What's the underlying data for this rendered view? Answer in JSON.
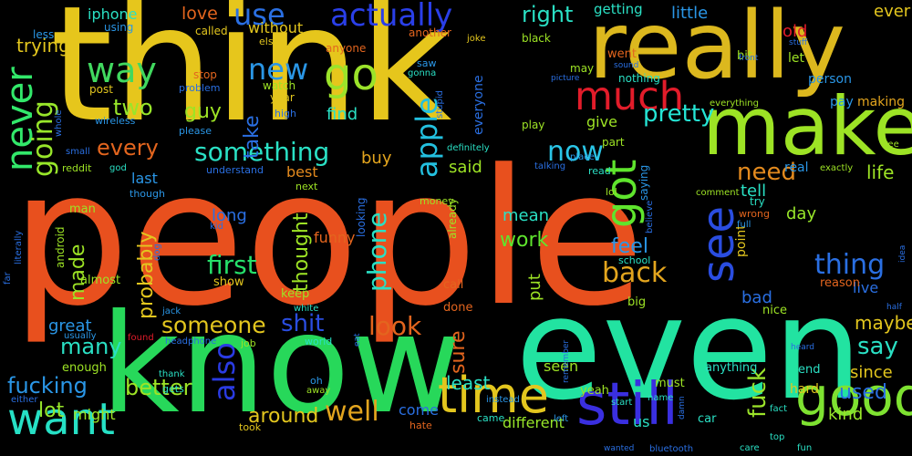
{
  "words": [
    {
      "text": "people",
      "color": "#e8501e"
    },
    {
      "text": "think",
      "color": "#e6c61c"
    },
    {
      "text": "know",
      "color": "#27d85a"
    },
    {
      "text": "even",
      "color": "#22e3a1"
    },
    {
      "text": "really",
      "color": "#dcb81e"
    },
    {
      "text": "make",
      "color": "#9de325"
    },
    {
      "text": "good",
      "color": "#7ee231"
    },
    {
      "text": "still",
      "color": "#3a2fe0"
    },
    {
      "text": "time",
      "color": "#e3c61e"
    },
    {
      "text": "want",
      "color": "#26e0c5"
    },
    {
      "text": "never",
      "color": "#32e86a"
    },
    {
      "text": "much",
      "color": "#e21c2a"
    },
    {
      "text": "go",
      "color": "#9be32a"
    },
    {
      "text": "got",
      "color": "#5fe52d"
    },
    {
      "text": "see",
      "color": "#2a4de0"
    },
    {
      "text": "way",
      "color": "#41d85f"
    },
    {
      "text": "going",
      "color": "#98e62a"
    },
    {
      "text": "also",
      "color": "#2a3be3"
    },
    {
      "text": "apple",
      "color": "#23c0df"
    },
    {
      "text": "actually",
      "color": "#2a3fe8"
    },
    {
      "text": "use",
      "color": "#2a6fe2"
    },
    {
      "text": "new",
      "color": "#2a96e6"
    },
    {
      "text": "pretty",
      "color": "#25e5d5"
    },
    {
      "text": "thing",
      "color": "#2a6fe2"
    },
    {
      "text": "something",
      "color": "#2ae0c4"
    },
    {
      "text": "first",
      "color": "#26e06a"
    },
    {
      "text": "someone",
      "color": "#e3c61e"
    },
    {
      "text": "shit",
      "color": "#2a4de0"
    },
    {
      "text": "need",
      "color": "#e38a1e"
    },
    {
      "text": "now",
      "color": "#2ac5e6"
    },
    {
      "text": "look",
      "color": "#e3651e"
    },
    {
      "text": "back",
      "color": "#e3a51e"
    },
    {
      "text": "say",
      "color": "#2ae0c4"
    },
    {
      "text": "well",
      "color": "#e3a51e"
    },
    {
      "text": "fucking",
      "color": "#2a96e6"
    },
    {
      "text": "every",
      "color": "#e3651e"
    },
    {
      "text": "better",
      "color": "#9de325"
    },
    {
      "text": "fuck",
      "color": "#9be32a"
    },
    {
      "text": "two",
      "color": "#98e62a"
    },
    {
      "text": "guy",
      "color": "#9de325"
    },
    {
      "text": "phone",
      "color": "#2ae0c4"
    },
    {
      "text": "feel",
      "color": "#2a96e6"
    },
    {
      "text": "lot",
      "color": "#98e62a"
    },
    {
      "text": "many",
      "color": "#2ae0c4"
    },
    {
      "text": "probably",
      "color": "#e3c61e"
    },
    {
      "text": "made",
      "color": "#9de325"
    },
    {
      "text": "work",
      "color": "#5fe52d"
    },
    {
      "text": "take",
      "color": "#2a6fe2"
    },
    {
      "text": "right",
      "color": "#2ae0c4"
    },
    {
      "text": "least",
      "color": "#2ae0c4"
    },
    {
      "text": "thought",
      "color": "#9de325"
    },
    {
      "text": "sure",
      "color": "#e3651e"
    },
    {
      "text": "around",
      "color": "#e3c61e"
    },
    {
      "text": "used",
      "color": "#2a6fe2"
    },
    {
      "text": "maybe",
      "color": "#e3c61e"
    },
    {
      "text": "life",
      "color": "#9de325"
    },
    {
      "text": "love",
      "color": "#e3651e"
    },
    {
      "text": "iphone",
      "color": "#2ae0c4"
    },
    {
      "text": "trying",
      "color": "#e3c61e"
    },
    {
      "text": "without",
      "color": "#e3c61e"
    },
    {
      "text": "funny",
      "color": "#e3651e"
    },
    {
      "text": "find",
      "color": "#2ae0c4"
    },
    {
      "text": "said",
      "color": "#9de325"
    },
    {
      "text": "buy",
      "color": "#e3a51e"
    },
    {
      "text": "mean",
      "color": "#2ae0c4"
    },
    {
      "text": "put",
      "color": "#9de325"
    },
    {
      "text": "tell",
      "color": "#2ae0c4"
    },
    {
      "text": "day",
      "color": "#98e62a"
    },
    {
      "text": "bad",
      "color": "#2a6fe2"
    },
    {
      "text": "since",
      "color": "#e3c61e"
    },
    {
      "text": "kind",
      "color": "#98e62a"
    },
    {
      "text": "ever",
      "color": "#e3c61e"
    },
    {
      "text": "old",
      "color": "#e21c2a"
    },
    {
      "text": "little",
      "color": "#2a96e6"
    },
    {
      "text": "getting",
      "color": "#2ae0c4"
    },
    {
      "text": "give",
      "color": "#9de325"
    },
    {
      "text": "last",
      "color": "#2a96e6"
    },
    {
      "text": "best",
      "color": "#e38a1e"
    },
    {
      "text": "long",
      "color": "#2a6fe2"
    },
    {
      "text": "great",
      "color": "#2a96e6"
    },
    {
      "text": "different",
      "color": "#98e62a"
    },
    {
      "text": "might",
      "color": "#9de325"
    },
    {
      "text": "come",
      "color": "#2a6fe2"
    },
    {
      "text": "us",
      "color": "#2ae0c4"
    },
    {
      "text": "seen",
      "color": "#9de325"
    },
    {
      "text": "live",
      "color": "#2a6fe2"
    },
    {
      "text": "point",
      "color": "#e3c61e"
    },
    {
      "text": "everyone",
      "color": "#2a6fe2"
    },
    {
      "text": "nothing",
      "color": "#2ae0c4"
    },
    {
      "text": "went",
      "color": "#e3651e"
    },
    {
      "text": "saying",
      "color": "#2a96e6"
    },
    {
      "text": "real",
      "color": "#2a96e6"
    },
    {
      "text": "try",
      "color": "#2ae0c4"
    },
    {
      "text": "wrong",
      "color": "#e3651e"
    },
    {
      "text": "person",
      "color": "#2a96e6"
    },
    {
      "text": "making",
      "color": "#e3a51e"
    },
    {
      "text": "pay",
      "color": "#2a96e6"
    },
    {
      "text": "let",
      "color": "#9de325"
    },
    {
      "text": "bit",
      "color": "#9de325"
    },
    {
      "text": "end",
      "color": "#2ae0c4"
    },
    {
      "text": "hard",
      "color": "#e3c61e"
    },
    {
      "text": "must",
      "color": "#9de325"
    },
    {
      "text": "enough",
      "color": "#9de325"
    },
    {
      "text": "keep",
      "color": "#9de325"
    },
    {
      "text": "call",
      "color": "#e3651e"
    },
    {
      "text": "done",
      "color": "#e3651e"
    },
    {
      "text": "yeah",
      "color": "#9de325"
    },
    {
      "text": "car",
      "color": "#2ae0c4"
    },
    {
      "text": "nice",
      "color": "#9de325"
    },
    {
      "text": "big",
      "color": "#9de325"
    },
    {
      "text": "reason",
      "color": "#e3651e"
    },
    {
      "text": "anything",
      "color": "#2ae0c4"
    },
    {
      "text": "already",
      "color": "#9de325"
    },
    {
      "text": "looking",
      "color": "#2a6fe2"
    },
    {
      "text": "show",
      "color": "#e3c61e"
    },
    {
      "text": "man",
      "color": "#9de325"
    },
    {
      "text": "android",
      "color": "#9de325"
    },
    {
      "text": "almost",
      "color": "#9de325"
    },
    {
      "text": "watch",
      "color": "#9de325"
    },
    {
      "text": "year",
      "color": "#e3c61e"
    },
    {
      "text": "stop",
      "color": "#e3651e"
    },
    {
      "text": "post",
      "color": "#e3c61e"
    },
    {
      "text": "called",
      "color": "#e3c61e"
    },
    {
      "text": "using",
      "color": "#2a96e6"
    },
    {
      "text": "less",
      "color": "#2a96e6"
    },
    {
      "text": "anyone",
      "color": "#e3651e"
    },
    {
      "text": "another",
      "color": "#e3651e"
    },
    {
      "text": "black",
      "color": "#9de325"
    },
    {
      "text": "may",
      "color": "#9de325"
    },
    {
      "text": "play",
      "color": "#9de325"
    },
    {
      "text": "part",
      "color": "#9de325"
    },
    {
      "text": "read",
      "color": "#2ae0c4"
    },
    {
      "text": "lol",
      "color": "#9de325"
    },
    {
      "text": "school",
      "color": "#2ae0c4"
    },
    {
      "text": "job",
      "color": "#9de325"
    },
    {
      "text": "world",
      "color": "#2ae0c4"
    },
    {
      "text": "oh",
      "color": "#2a96e6"
    },
    {
      "text": "gets",
      "color": "#2ae0c4"
    },
    {
      "text": "came",
      "color": "#2ae0c4"
    },
    {
      "text": "hate",
      "color": "#e3651e"
    },
    {
      "text": "took",
      "color": "#e3c61e"
    },
    {
      "text": "money",
      "color": "#9de325"
    },
    {
      "text": "next",
      "color": "#9de325"
    },
    {
      "text": "though",
      "color": "#2a96e6"
    },
    {
      "text": "understand",
      "color": "#2a6fe2"
    },
    {
      "text": "reddit",
      "color": "#9de325"
    },
    {
      "text": "wireless",
      "color": "#2a96e6"
    },
    {
      "text": "please",
      "color": "#2a96e6"
    },
    {
      "text": "problem",
      "color": "#2a6fe2"
    },
    {
      "text": "high",
      "color": "#2a6fe2"
    },
    {
      "text": "stupid",
      "color": "#2a6fe2"
    },
    {
      "text": "saw",
      "color": "#2a96e6"
    },
    {
      "text": "gonna",
      "color": "#2ae0c4"
    },
    {
      "text": "joke",
      "color": "#e3c61e"
    },
    {
      "text": "else",
      "color": "#e3c61e"
    },
    {
      "text": "sound",
      "color": "#2a6fe2"
    },
    {
      "text": "picture",
      "color": "#2a6fe2"
    },
    {
      "text": "front",
      "color": "#2a6fe2"
    },
    {
      "text": "stuff",
      "color": "#2a6fe2"
    },
    {
      "text": "everything",
      "color": "#9de325"
    },
    {
      "text": "free",
      "color": "#9de325"
    },
    {
      "text": "exactly",
      "color": "#9de325"
    },
    {
      "text": "comment",
      "color": "#9de325"
    },
    {
      "text": "full",
      "color": "#2a96e6"
    },
    {
      "text": "believe",
      "color": "#2a6fe2"
    },
    {
      "text": "place",
      "color": "#2a96e6"
    },
    {
      "text": "talking",
      "color": "#2a6fe2"
    },
    {
      "text": "definitely",
      "color": "#2ae0c4"
    },
    {
      "text": "god",
      "color": "#2ae0c4"
    },
    {
      "text": "small",
      "color": "#2a6fe2"
    },
    {
      "text": "whole",
      "color": "#2a6fe2"
    },
    {
      "text": "far",
      "color": "#2a6fe2"
    },
    {
      "text": "literally",
      "color": "#2a6fe2"
    },
    {
      "text": "kid",
      "color": "#2a6fe2"
    },
    {
      "text": "dog",
      "color": "#2a6fe2"
    },
    {
      "text": "jack",
      "color": "#2a96e6"
    },
    {
      "text": "usually",
      "color": "#2a96e6"
    },
    {
      "text": "found",
      "color": "#e21c2a"
    },
    {
      "text": "headphone",
      "color": "#2a6fe2"
    },
    {
      "text": "white",
      "color": "#2ae0c4"
    },
    {
      "text": "thank",
      "color": "#2ae0c4"
    },
    {
      "text": "either",
      "color": "#2a6fe2"
    },
    {
      "text": "away",
      "color": "#9de325"
    },
    {
      "text": "eat",
      "color": "#2a6fe2"
    },
    {
      "text": "remember",
      "color": "#2a6fe2"
    },
    {
      "text": "instead",
      "color": "#2a96e6"
    },
    {
      "text": "start",
      "color": "#2ae0c4"
    },
    {
      "text": "name",
      "color": "#2ae0c4"
    },
    {
      "text": "left",
      "color": "#2a96e6"
    },
    {
      "text": "damn",
      "color": "#2a6fe2"
    },
    {
      "text": "wanted",
      "color": "#2a6fe2"
    },
    {
      "text": "bluetooth",
      "color": "#2a6fe2"
    },
    {
      "text": "care",
      "color": "#2ae0c4"
    },
    {
      "text": "top",
      "color": "#2ae0c4"
    },
    {
      "text": "fun",
      "color": "#2ae0c4"
    },
    {
      "text": "fact",
      "color": "#2ae0c4"
    },
    {
      "text": "heard",
      "color": "#2a6fe2"
    },
    {
      "text": "idea",
      "color": "#2a6fe2"
    },
    {
      "text": "half",
      "color": "#2a6fe2"
    }
  ]
}
